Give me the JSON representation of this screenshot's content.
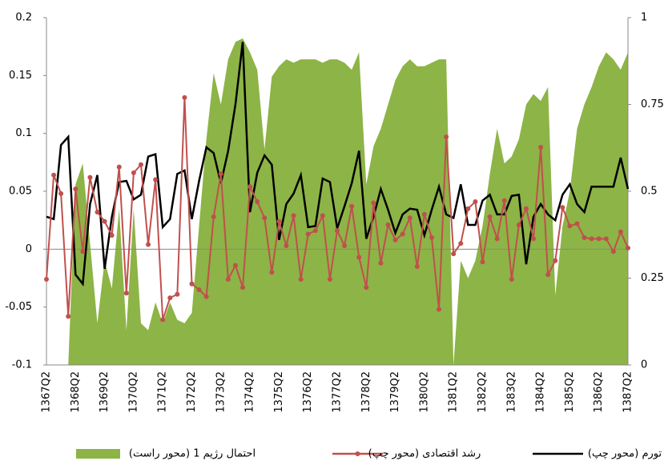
{
  "chart_data": {
    "type": "line",
    "categories": [
      "1367Q2",
      null,
      null,
      null,
      "1368Q2",
      null,
      null,
      null,
      "1369Q2",
      null,
      null,
      null,
      "1370Q2",
      null,
      null,
      null,
      "1371Q2",
      null,
      null,
      null,
      "1372Q2",
      null,
      null,
      null,
      "1373Q2",
      null,
      null,
      null,
      "1374Q2",
      null,
      null,
      null,
      "1375Q2",
      null,
      null,
      null,
      "1376Q2",
      null,
      null,
      null,
      "1377Q2",
      null,
      null,
      null,
      "1378Q2",
      null,
      null,
      null,
      "1379Q2",
      null,
      null,
      null,
      "1380Q2",
      null,
      null,
      null,
      "1381Q2",
      null,
      null,
      null,
      "1382Q2",
      null,
      null,
      null,
      "1383Q2",
      null,
      null,
      null,
      "1384Q2",
      null,
      null,
      null,
      "1385Q2",
      null,
      null,
      null,
      "1386Q2",
      null,
      null,
      null,
      "1387Q2"
    ],
    "series": [
      {
        "name": "تورم (محور چپ)",
        "color": "#000000",
        "values": [
          0.028,
          0.026,
          0.09,
          0.097,
          -0.022,
          -0.03,
          0.039,
          0.064,
          -0.017,
          0.028,
          0.058,
          0.059,
          0.043,
          0.047,
          0.08,
          0.082,
          0.019,
          0.026,
          0.065,
          0.068,
          0.026,
          0.059,
          0.088,
          0.083,
          0.057,
          0.085,
          0.125,
          0.179,
          0.032,
          0.066,
          0.081,
          0.073,
          0.008,
          0.039,
          0.048,
          0.064,
          0.019,
          0.02,
          0.061,
          0.058,
          0.018,
          0.037,
          0.057,
          0.085,
          0.009,
          0.028,
          0.052,
          0.034,
          0.014,
          0.03,
          0.035,
          0.034,
          0.012,
          0.034,
          0.054,
          0.03,
          0.027,
          0.056,
          0.021,
          0.021,
          0.042,
          0.047,
          0.03,
          0.03,
          0.046,
          0.047,
          -0.013,
          0.028,
          0.039,
          0.03,
          0.025,
          0.047,
          0.056,
          0.039,
          0.032,
          0.054,
          0.054,
          0.054,
          0.054,
          0.079,
          0.052
        ]
      },
      {
        "name": "رشد اقتصادی (محور چپ)",
        "color": "#c0504d",
        "values": [
          -0.026,
          0.064,
          0.048,
          -0.058,
          0.052,
          -0.002,
          0.062,
          0.032,
          0.024,
          0.012,
          0.071,
          -0.038,
          0.066,
          0.073,
          0.004,
          0.06,
          -0.061,
          -0.042,
          -0.039,
          0.131,
          -0.03,
          -0.035,
          -0.041,
          0.028,
          0.065,
          -0.026,
          -0.014,
          -0.033,
          0.054,
          0.041,
          0.027,
          -0.02,
          0.024,
          0.003,
          0.029,
          -0.026,
          0.013,
          0.016,
          0.029,
          -0.026,
          0.016,
          0.003,
          0.037,
          -0.007,
          -0.033,
          0.04,
          -0.012,
          0.021,
          0.008,
          0.013,
          0.027,
          -0.015,
          0.03,
          0.01,
          -0.052,
          0.097,
          -0.004,
          0.005,
          0.035,
          0.041,
          -0.011,
          0.028,
          0.009,
          0.042,
          -0.026,
          0.021,
          0.035,
          0.009,
          0.088,
          -0.022,
          -0.01,
          0.036,
          0.02,
          0.022,
          0.01,
          0.009,
          0.009,
          0.009,
          -0.002,
          0.015,
          0.001
        ]
      },
      {
        "name": "احتمال رژیم 1 (محور راست)",
        "color": "#8db446",
        "axis": "y2",
        "values": [
          0,
          0,
          0,
          0,
          0.52,
          0.58,
          0.35,
          0.12,
          0.3,
          0.22,
          0.45,
          0.1,
          0.45,
          0.12,
          0.1,
          0.18,
          0.12,
          0.18,
          0.13,
          0.12,
          0.15,
          0.4,
          0.65,
          0.84,
          0.75,
          0.88,
          0.93,
          0.94,
          0.9,
          0.85,
          0.62,
          0.83,
          0.86,
          0.88,
          0.87,
          0.88,
          0.88,
          0.88,
          0.87,
          0.88,
          0.88,
          0.87,
          0.85,
          0.9,
          0.52,
          0.63,
          0.68,
          0.75,
          0.82,
          0.86,
          0.88,
          0.86,
          0.86,
          0.87,
          0.88,
          0.88,
          0,
          0.3,
          0.25,
          0.3,
          0.4,
          0.55,
          0.68,
          0.58,
          0.6,
          0.65,
          0.75,
          0.78,
          0.76,
          0.8,
          0.2,
          0.4,
          0.5,
          0.68,
          0.75,
          0.8,
          0.86,
          0.9,
          0.88,
          0.85,
          0.9
        ]
      }
    ],
    "ylim": [
      -0.1,
      0.2
    ],
    "yticks": [
      -0.1,
      -0.05,
      0,
      0.05,
      0.1,
      0.15,
      0.2
    ],
    "y2lim": [
      0,
      1
    ],
    "y2ticks": [
      0,
      0.25,
      0.5,
      0.75,
      1
    ],
    "legend": "bottom"
  }
}
